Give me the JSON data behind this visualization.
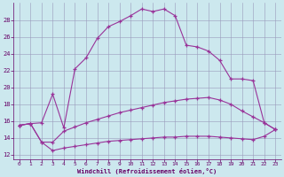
{
  "xlabel": "Windchill (Refroidissement éolien,°C)",
  "background_color": "#cce8ee",
  "line_color": "#993399",
  "xlim": [
    -0.5,
    23.5
  ],
  "ylim": [
    11.5,
    30
  ],
  "yticks": [
    12,
    14,
    16,
    18,
    20,
    22,
    24,
    26,
    28
  ],
  "x_ticks": [
    0,
    1,
    2,
    3,
    4,
    5,
    6,
    7,
    8,
    9,
    10,
    11,
    12,
    13,
    14,
    15,
    16,
    17,
    18,
    19,
    20,
    21,
    22,
    23
  ],
  "series1_y": [
    15.5,
    15.7,
    15.8,
    19.2,
    15.2,
    22.2,
    23.5,
    25.8,
    27.2,
    27.8,
    28.5,
    29.3,
    29.0,
    29.3,
    28.5,
    25.0,
    24.8,
    24.3,
    23.2,
    21.0,
    21.0,
    20.8,
    15.8,
    15.0
  ],
  "series2_y": [
    15.5,
    15.7,
    13.5,
    13.5,
    14.8,
    15.3,
    15.8,
    16.2,
    16.6,
    17.0,
    17.3,
    17.6,
    17.9,
    18.2,
    18.4,
    18.6,
    18.7,
    18.8,
    18.5,
    18.0,
    17.2,
    16.5,
    15.8,
    15.0
  ],
  "series3_y": [
    15.5,
    15.7,
    13.5,
    12.5,
    12.8,
    13.0,
    13.2,
    13.4,
    13.6,
    13.7,
    13.8,
    13.9,
    14.0,
    14.1,
    14.1,
    14.2,
    14.2,
    14.2,
    14.1,
    14.0,
    13.9,
    13.8,
    14.2,
    15.0
  ]
}
